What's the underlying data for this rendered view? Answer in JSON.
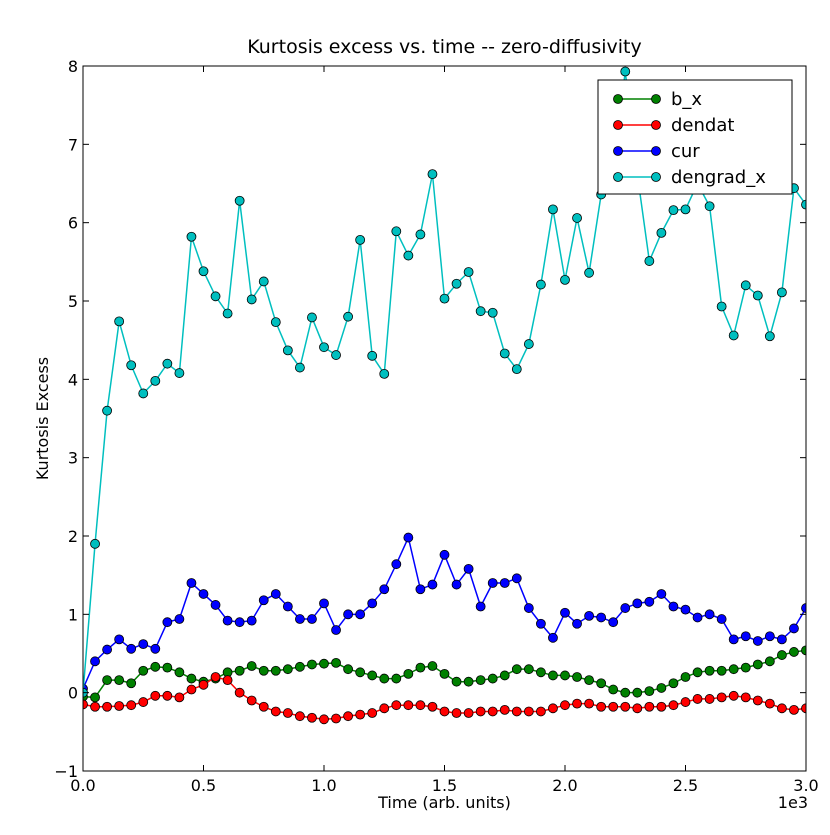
{
  "chart_data": {
    "type": "line",
    "title": "Kurtosis excess vs. time -- zero-diffusivity",
    "xlabel": "Time (arb. units)",
    "ylabel": "Kurtosis Excess",
    "x_offset_label": "1e3",
    "xlim": [
      0.0,
      3.0
    ],
    "ylim": [
      -1,
      8
    ],
    "x_ticks": [
      0.0,
      0.5,
      1.0,
      1.5,
      2.0,
      2.5,
      3.0
    ],
    "x_tick_labels": [
      "0.0",
      "0.5",
      "1.0",
      "1.5",
      "2.0",
      "2.5",
      "3.0"
    ],
    "y_ticks": [
      -1,
      0,
      1,
      2,
      3,
      4,
      5,
      6,
      7,
      8
    ],
    "y_tick_labels": [
      "−1",
      "0",
      "1",
      "2",
      "3",
      "4",
      "5",
      "6",
      "7",
      "8"
    ],
    "grid": false,
    "legend_position": "top-right",
    "x": [
      0.0,
      0.05,
      0.1,
      0.15,
      0.2,
      0.25,
      0.3,
      0.35,
      0.4,
      0.45,
      0.5,
      0.55,
      0.6,
      0.65,
      0.7,
      0.75,
      0.8,
      0.85,
      0.9,
      0.95,
      1.0,
      1.05,
      1.1,
      1.15,
      1.2,
      1.25,
      1.3,
      1.35,
      1.4,
      1.45,
      1.5,
      1.55,
      1.6,
      1.65,
      1.7,
      1.75,
      1.8,
      1.85,
      1.9,
      1.95,
      2.0,
      2.05,
      2.1,
      2.15,
      2.2,
      2.25,
      2.3,
      2.35,
      2.4,
      2.45,
      2.5,
      2.55,
      2.6,
      2.65,
      2.7,
      2.75,
      2.8,
      2.85,
      2.9,
      2.95,
      3.0
    ],
    "series": [
      {
        "name": "b_x",
        "color": "#008000",
        "values": [
          -0.05,
          -0.06,
          0.16,
          0.16,
          0.12,
          0.28,
          0.33,
          0.32,
          0.26,
          0.18,
          0.14,
          0.18,
          0.26,
          0.28,
          0.34,
          0.28,
          0.28,
          0.3,
          0.33,
          0.36,
          0.37,
          0.38,
          0.3,
          0.26,
          0.22,
          0.18,
          0.18,
          0.24,
          0.32,
          0.34,
          0.24,
          0.14,
          0.14,
          0.16,
          0.18,
          0.22,
          0.3,
          0.3,
          0.26,
          0.22,
          0.22,
          0.2,
          0.16,
          0.12,
          0.04,
          0.0,
          0.0,
          0.02,
          0.06,
          0.12,
          0.2,
          0.26,
          0.28,
          0.28,
          0.3,
          0.32,
          0.36,
          0.4,
          0.48,
          0.52,
          0.54
        ]
      },
      {
        "name": "dendat",
        "color": "#ff0000",
        "values": [
          -0.15,
          -0.18,
          -0.18,
          -0.17,
          -0.16,
          -0.12,
          -0.04,
          -0.04,
          -0.06,
          0.04,
          0.1,
          0.2,
          0.16,
          0.0,
          -0.1,
          -0.18,
          -0.24,
          -0.26,
          -0.3,
          -0.32,
          -0.34,
          -0.33,
          -0.3,
          -0.28,
          -0.26,
          -0.2,
          -0.16,
          -0.16,
          -0.16,
          -0.18,
          -0.24,
          -0.26,
          -0.26,
          -0.24,
          -0.24,
          -0.22,
          -0.24,
          -0.24,
          -0.24,
          -0.2,
          -0.16,
          -0.14,
          -0.14,
          -0.18,
          -0.18,
          -0.18,
          -0.2,
          -0.18,
          -0.18,
          -0.16,
          -0.12,
          -0.08,
          -0.08,
          -0.06,
          -0.04,
          -0.06,
          -0.1,
          -0.14,
          -0.2,
          -0.22,
          -0.2
        ]
      },
      {
        "name": "cur",
        "color": "#0000ff",
        "values": [
          0.05,
          0.4,
          0.55,
          0.68,
          0.56,
          0.62,
          0.56,
          0.9,
          0.94,
          1.4,
          1.26,
          1.12,
          0.92,
          0.9,
          0.92,
          1.18,
          1.26,
          1.1,
          0.94,
          0.94,
          1.14,
          0.8,
          1.0,
          1.0,
          1.14,
          1.32,
          1.64,
          1.98,
          1.32,
          1.38,
          1.76,
          1.38,
          1.58,
          1.1,
          1.4,
          1.4,
          1.46,
          1.08,
          0.88,
          0.7,
          1.02,
          0.88,
          0.98,
          0.96,
          0.9,
          1.08,
          1.14,
          1.16,
          1.26,
          1.1,
          1.06,
          0.96,
          1.0,
          0.94,
          0.68,
          0.72,
          0.66,
          0.72,
          0.68,
          0.82,
          1.08
        ]
      },
      {
        "name": "dengrad_x",
        "color": "#00bfbf",
        "values": [
          0.0,
          1.9,
          3.6,
          4.74,
          4.18,
          3.82,
          3.98,
          4.2,
          4.08,
          5.82,
          5.38,
          5.06,
          4.84,
          6.28,
          5.02,
          5.25,
          4.73,
          4.37,
          4.15,
          4.79,
          4.41,
          4.31,
          4.8,
          5.78,
          4.3,
          4.07,
          5.89,
          5.58,
          5.85,
          6.62,
          5.03,
          5.22,
          5.37,
          4.87,
          4.85,
          4.33,
          4.13,
          4.45,
          5.21,
          6.17,
          5.27,
          6.06,
          5.36,
          6.36,
          6.66,
          7.93,
          6.62,
          5.51,
          5.87,
          6.16,
          6.17,
          6.5,
          6.21,
          4.93,
          4.56,
          5.2,
          5.07,
          4.55,
          5.11,
          6.44,
          6.23
        ]
      }
    ]
  }
}
